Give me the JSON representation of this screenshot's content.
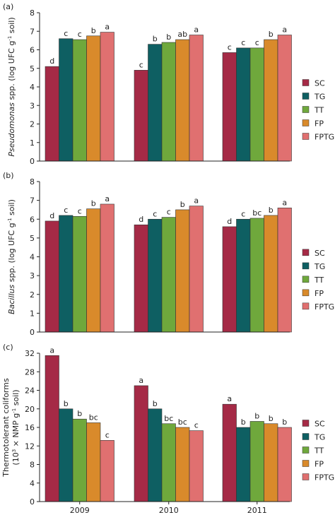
{
  "series_colors": {
    "SC": "#a52a46",
    "TG": "#0e5f62",
    "TT": "#6fa83c",
    "FP": "#d98a2b",
    "FPTG": "#e07070"
  },
  "chart_data": [
    {
      "type": "bar",
      "panel_label": "(a)",
      "ylabel_italic": "Pseudomonas",
      "ylabel_rest": " spp. (log UFC g",
      "ylabel_sup": "-1",
      "ylabel_end": " soil)",
      "ylim": [
        0,
        8
      ],
      "yticks": [
        "0",
        "1",
        "2",
        "3",
        "4",
        "5",
        "6",
        "7",
        "8"
      ],
      "ytick_values": [
        0,
        1,
        2,
        3,
        4,
        5,
        6,
        7,
        8
      ],
      "categories": [
        "2009",
        "2010",
        "2011"
      ],
      "legend_position": "right",
      "series": [
        {
          "name": "SC",
          "values": [
            5.1,
            4.9,
            5.85
          ],
          "letters": [
            "d",
            "c",
            "c"
          ]
        },
        {
          "name": "TG",
          "values": [
            6.6,
            6.3,
            6.1
          ],
          "letters": [
            "c",
            "b",
            "c"
          ]
        },
        {
          "name": "TT",
          "values": [
            6.55,
            6.4,
            6.1
          ],
          "letters": [
            "c",
            "b",
            "c"
          ]
        },
        {
          "name": "FP",
          "values": [
            6.75,
            6.55,
            6.55
          ],
          "letters": [
            "b",
            "ab",
            "b"
          ]
        },
        {
          "name": "FPTG",
          "values": [
            6.95,
            6.8,
            6.8
          ],
          "letters": [
            "a",
            "a",
            "a"
          ]
        }
      ]
    },
    {
      "type": "bar",
      "panel_label": "(b)",
      "ylabel_italic": "Bacillus",
      "ylabel_rest": " spp. (log UFC g",
      "ylabel_sup": "-1",
      "ylabel_end": " soil)",
      "ylim": [
        0,
        8
      ],
      "yticks": [
        "0",
        "1",
        "2",
        "3",
        "4",
        "5",
        "6",
        "7",
        "8"
      ],
      "ytick_values": [
        0,
        1,
        2,
        3,
        4,
        5,
        6,
        7,
        8
      ],
      "categories": [
        "2009",
        "2010",
        "2011"
      ],
      "legend_position": "right",
      "series": [
        {
          "name": "SC",
          "values": [
            5.9,
            5.7,
            5.6
          ],
          "letters": [
            "d",
            "d",
            "d"
          ]
        },
        {
          "name": "TG",
          "values": [
            6.2,
            6.0,
            6.0
          ],
          "letters": [
            "c",
            "c",
            "c"
          ]
        },
        {
          "name": "TT",
          "values": [
            6.15,
            6.1,
            6.05
          ],
          "letters": [
            "c",
            "c",
            "bc"
          ]
        },
        {
          "name": "FP",
          "values": [
            6.55,
            6.5,
            6.2
          ],
          "letters": [
            "b",
            "b",
            "b"
          ]
        },
        {
          "name": "FPTG",
          "values": [
            6.8,
            6.7,
            6.6
          ],
          "letters": [
            "a",
            "a",
            "a"
          ]
        }
      ]
    },
    {
      "type": "bar",
      "panel_label": "(c)",
      "ylabel_line1": "Thermotolerant coliforms",
      "ylabel_pre": "(10",
      "ylabel_sup1": "3",
      "ylabel_mid": " × NMP g",
      "ylabel_sup2": "-1",
      "ylabel_end": " soil)",
      "ylim": [
        0,
        32
      ],
      "yticks": [
        "0",
        "4",
        "8",
        "12",
        "16",
        "20",
        "24",
        "28",
        "32"
      ],
      "ytick_values": [
        0,
        4,
        8,
        12,
        16,
        20,
        24,
        28,
        32
      ],
      "categories": [
        "2009",
        "2010",
        "2011"
      ],
      "legend_position": "right",
      "series": [
        {
          "name": "SC",
          "values": [
            31.5,
            25.0,
            21.0
          ],
          "letters": [
            "a",
            "a",
            "a"
          ]
        },
        {
          "name": "TG",
          "values": [
            20.0,
            20.0,
            16.0
          ],
          "letters": [
            "b",
            "b",
            "b"
          ]
        },
        {
          "name": "TT",
          "values": [
            17.8,
            16.8,
            17.3
          ],
          "letters": [
            "b",
            "bc",
            "b"
          ]
        },
        {
          "name": "FP",
          "values": [
            17.0,
            16.0,
            16.8
          ],
          "letters": [
            "bc",
            "bc",
            "b"
          ]
        },
        {
          "name": "FPTG",
          "values": [
            13.2,
            15.3,
            16.0
          ],
          "letters": [
            "c",
            "c",
            "b"
          ]
        }
      ]
    }
  ]
}
